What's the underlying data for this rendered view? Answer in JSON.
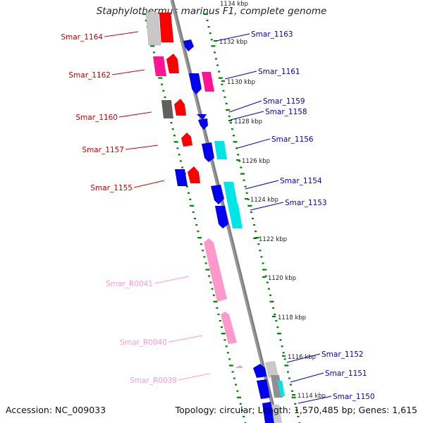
{
  "title": "Staphylothermus marinus F1, complete genome",
  "footer": {
    "accession": "Accession: NC_009033",
    "topology": "Topology: circular; Length: 1,570,485 bp; Genes: 1,615"
  },
  "axis": {
    "top_cut_label": "1134 kbp",
    "ticks": [
      {
        "kbp": 1132,
        "label": "1132 kbp"
      },
      {
        "kbp": 1130,
        "label": "1130 kbp"
      },
      {
        "kbp": 1128,
        "label": "1128 kbp"
      },
      {
        "kbp": 1126,
        "label": "1126 kbp"
      },
      {
        "kbp": 1124,
        "label": "1124 kbp"
      },
      {
        "kbp": 1122,
        "label": "1122 kbp"
      },
      {
        "kbp": 1120,
        "label": "1120 kbp"
      },
      {
        "kbp": 1118,
        "label": "1118 kbp"
      },
      {
        "kbp": 1116,
        "label": "1116 kbp"
      },
      {
        "kbp": 1114,
        "label": "1114 kbp"
      }
    ]
  },
  "colors": {
    "reverse_label": "#cc0000",
    "forward_label": "#0000cc",
    "rna_label": "#ff99cc",
    "red": "#ff0000",
    "blue": "#0000ee",
    "magenta": "#ff1493",
    "cyan": "#00e5e5",
    "gray": "#c8c8c8",
    "darkgray": "#606060",
    "pink": "#ff99cc",
    "tick_dot": "#008000",
    "backbone": "#808080"
  },
  "genes_left": [
    {
      "name": "Smar_1164",
      "color": "#cc0000"
    },
    {
      "name": "Smar_1162",
      "color": "#cc0000"
    },
    {
      "name": "Smar_1160",
      "color": "#cc0000"
    },
    {
      "name": "Smar_1157",
      "color": "#cc0000"
    },
    {
      "name": "Smar_1155",
      "color": "#cc0000"
    },
    {
      "name": "Smar_R0041",
      "color": "#ff99cc"
    },
    {
      "name": "Smar_R0040",
      "color": "#ff99cc"
    },
    {
      "name": "Smar_R0039",
      "color": "#ff99cc"
    }
  ],
  "genes_right": [
    {
      "name": "Smar_1163"
    },
    {
      "name": "Smar_1161"
    },
    {
      "name": "Smar_1159"
    },
    {
      "name": "Smar_1158"
    },
    {
      "name": "Smar_1156"
    },
    {
      "name": "Smar_1154"
    },
    {
      "name": "Smar_1153"
    },
    {
      "name": "Smar_1152"
    },
    {
      "name": "Smar_1151"
    },
    {
      "name": "Smar_1150"
    }
  ]
}
